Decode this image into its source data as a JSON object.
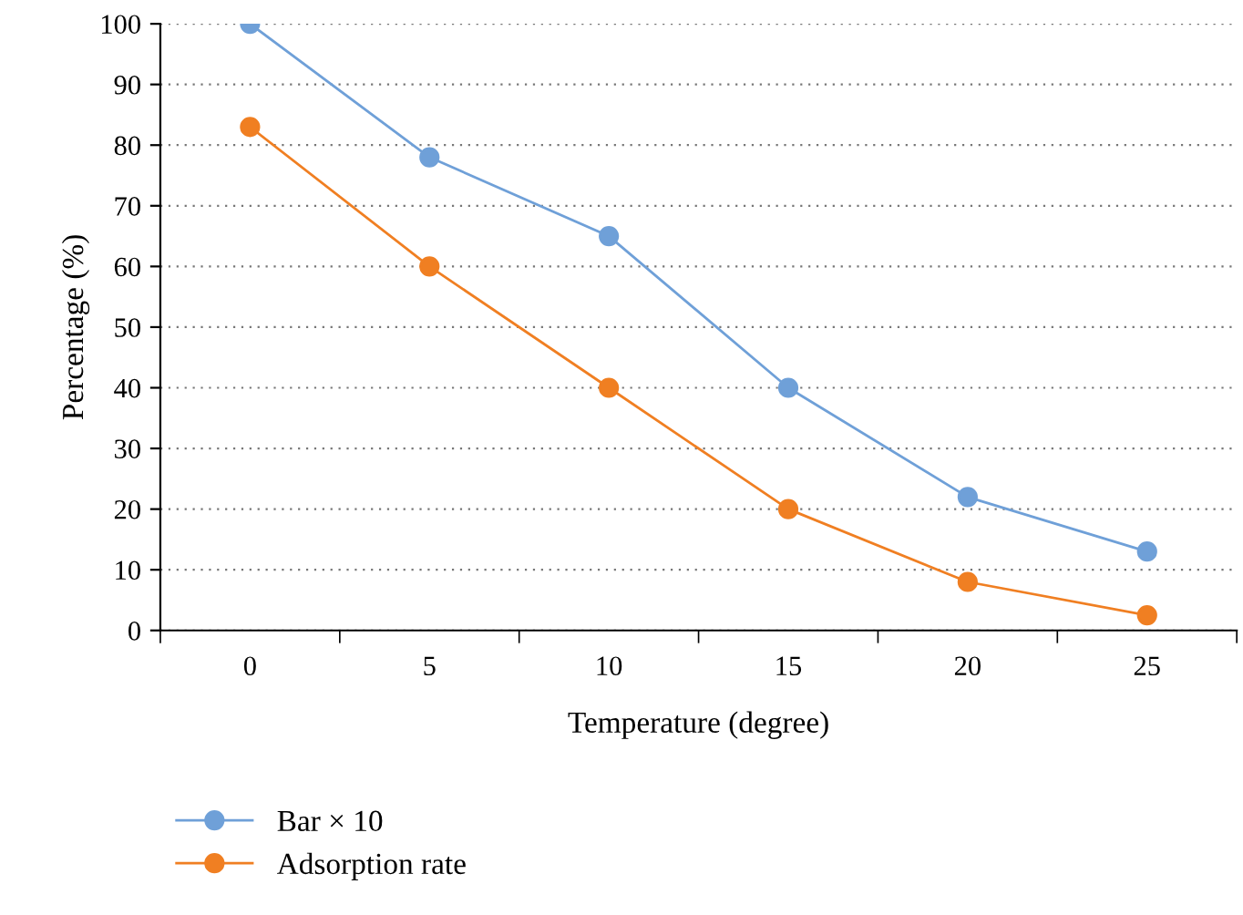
{
  "chart_data": {
    "type": "line",
    "xlabel": "Temperature (degree)",
    "ylabel": "Percentage (%)",
    "categories": [
      "0",
      "5",
      "10",
      "15",
      "20",
      "25"
    ],
    "series": [
      {
        "name": "Bar × 10",
        "color": "#6fa0d8",
        "values": [
          100,
          78,
          65,
          40,
          22,
          13
        ]
      },
      {
        "name": "Adsorption rate",
        "color": "#f07f22",
        "values": [
          83,
          60,
          40,
          20,
          8,
          2.5
        ]
      }
    ],
    "ylim": [
      0,
      100
    ],
    "yticks": [
      0,
      10,
      20,
      30,
      40,
      50,
      60,
      70,
      80,
      90,
      100
    ],
    "grid": "y",
    "legend": "bottom left",
    "marker": "circle",
    "line_style": "solid"
  }
}
